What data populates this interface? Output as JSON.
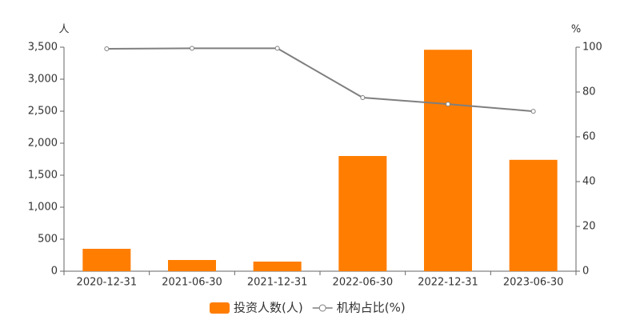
{
  "chart_data": {
    "type": "bar-line",
    "ylabel": "人",
    "y2label": "%",
    "categories": [
      "2020-12-31",
      "2021-06-30",
      "2021-12-31",
      "2022-06-30",
      "2022-12-31",
      "2023-06-30"
    ],
    "series": [
      {
        "name": "投资人数(人)",
        "type": "bar",
        "color": "#ff7d00",
        "values": [
          350,
          175,
          150,
          1800,
          3460,
          1740
        ]
      },
      {
        "name": "机构占比(%)",
        "type": "line",
        "axis": "y2",
        "color": "#7f7f7f",
        "values": [
          99.3,
          99.5,
          99.5,
          77.5,
          74.6,
          71.4
        ]
      }
    ],
    "ylim": [
      0,
      3500
    ],
    "yticks": [
      0,
      500,
      {
        "value": 1000,
        "label": "1,000"
      },
      {
        "value": 1500,
        "label": "1,500"
      },
      {
        "value": 2000,
        "label": "2,000"
      },
      {
        "value": 2500,
        "label": "2,500"
      },
      {
        "value": 3000,
        "label": "3,000"
      },
      {
        "value": 3500,
        "label": "3,500"
      }
    ],
    "y2lim": [
      0,
      100
    ],
    "y2ticks": [
      0,
      20,
      40,
      60,
      80,
      100
    ],
    "grid": false
  }
}
